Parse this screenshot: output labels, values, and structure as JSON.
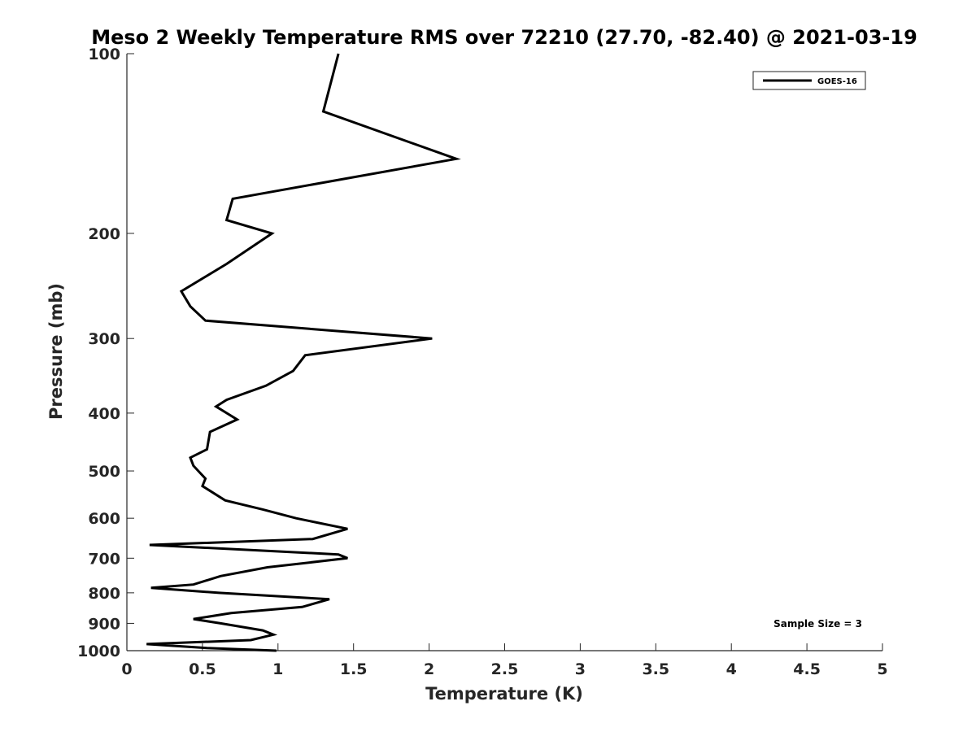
{
  "chart_data": {
    "type": "line",
    "title": "Meso 2 Weekly Temperature RMS over 72210 (27.70, -82.40) @ 2021-03-19",
    "xlabel": "Temperature (K)",
    "ylabel": "Pressure (mb)",
    "xlim": [
      0,
      5
    ],
    "ylim": [
      100,
      1000
    ],
    "yscale": "log",
    "y_reversed": true,
    "xticks": [
      0,
      0.5,
      1,
      1.5,
      2,
      2.5,
      3,
      3.5,
      4,
      4.5,
      5
    ],
    "xtick_labels": [
      "0",
      "0.5",
      "1",
      "1.5",
      "2",
      "2.5",
      "3",
      "3.5",
      "4",
      "4.5",
      "5"
    ],
    "yticks": [
      100,
      200,
      300,
      400,
      500,
      600,
      700,
      800,
      900,
      1000
    ],
    "ytick_labels": [
      "100",
      "200",
      "300",
      "400",
      "500",
      "600",
      "700",
      "800",
      "900",
      "1000"
    ],
    "grid": false,
    "legend_position": "top-right",
    "series": [
      {
        "name": "GOES-16",
        "color": "#000000",
        "x": [
          1.4,
          1.3,
          2.18,
          0.7,
          0.66,
          0.96,
          0.66,
          0.36,
          0.42,
          0.52,
          2.02,
          1.18,
          1.1,
          0.92,
          0.66,
          0.59,
          0.73,
          0.55,
          0.53,
          0.42,
          0.44,
          0.52,
          0.5,
          0.65,
          0.9,
          1.12,
          1.46,
          1.23,
          0.15,
          1.4,
          1.46,
          0.93,
          0.62,
          0.44,
          0.16,
          0.61,
          1.34,
          1.16,
          0.69,
          0.44,
          0.62,
          0.9,
          0.97,
          0.82,
          0.13,
          0.53,
          0.99
        ],
        "y": [
          100,
          125,
          150,
          175,
          190,
          200,
          225,
          250,
          265,
          280,
          300,
          320,
          340,
          360,
          380,
          390,
          410,
          430,
          460,
          475,
          490,
          515,
          530,
          560,
          580,
          600,
          625,
          650,
          665,
          690,
          700,
          725,
          750,
          775,
          785,
          800,
          820,
          845,
          865,
          885,
          900,
          925,
          940,
          960,
          975,
          990,
          1000
        ]
      }
    ],
    "annotations": [
      "Sample Size = 3"
    ]
  }
}
